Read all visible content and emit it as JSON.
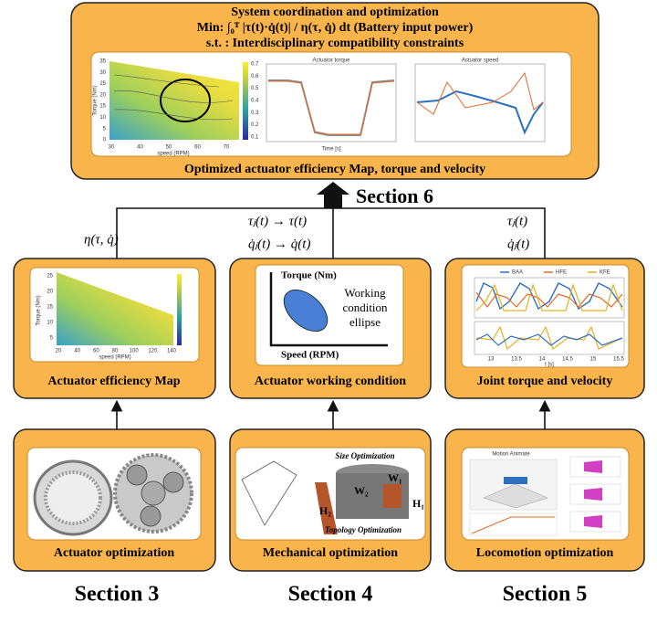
{
  "top": {
    "title": "System coordination and optimization",
    "objective": "Min: ∫₀ᵀ |τ(t)·q̇(t)| / η(τ, q̇) dt (Battery input power)",
    "constraint": "s.t. : Interdisciplinary compatibility constraints",
    "caption": "Optimized actuator efficiency Map, torque and velocity",
    "map": {
      "y_label": "Torque (Nm)",
      "x_label": "speed (RPM)",
      "yticks": [
        0,
        5,
        10,
        15,
        20,
        25,
        30,
        35
      ],
      "xticks": [
        30,
        40,
        50,
        60,
        70
      ],
      "cticks": [
        0.1,
        0.2,
        0.3,
        0.4,
        0.5,
        0.6,
        0.7
      ]
    },
    "torque_title": "Actuator torque",
    "speed_title": "Actuator speed",
    "time_label": "Time [s]"
  },
  "section6": "Section 6",
  "links": {
    "left": "η(τ, q̇)",
    "middle": [
      "τⱼ(t) → τ(t)",
      "q̇ⱼ(t) → q̇(t)"
    ],
    "right": [
      "τⱼ(t)",
      "q̇ⱼ(t)"
    ]
  },
  "middle": [
    {
      "caption": "Actuator efficiency Map",
      "y_label": "Torque (Nm)",
      "x_label": "speed (RPM)",
      "yticks": [
        5,
        10,
        15,
        20,
        25
      ],
      "xticks": [
        20,
        40,
        60,
        80,
        100,
        120,
        140
      ]
    },
    {
      "caption": "Actuator working condition",
      "y_label": "Torque (Nm)",
      "x_label": "Speed (RPM)",
      "note": [
        "Working",
        "condition",
        "ellipse"
      ]
    },
    {
      "caption": "Joint torque and velocity",
      "legend": [
        "BAA",
        "HFE",
        "KFE"
      ],
      "x_label": "t [s]",
      "xticks": [
        13,
        13.5,
        14,
        14.5,
        15,
        15.5
      ]
    }
  ],
  "bottom": [
    {
      "caption": "Actuator optimization"
    },
    {
      "caption": "Mechanical optimization",
      "size": "Size Optimization",
      "topology": "Topology Optimization",
      "dims": [
        "W₁",
        "W₂",
        "H₁",
        "H₂"
      ]
    },
    {
      "caption": "Locomotion optimization",
      "title": "Motion Animate"
    }
  ],
  "sections": [
    "Section 3",
    "Section 4",
    "Section 5"
  ]
}
